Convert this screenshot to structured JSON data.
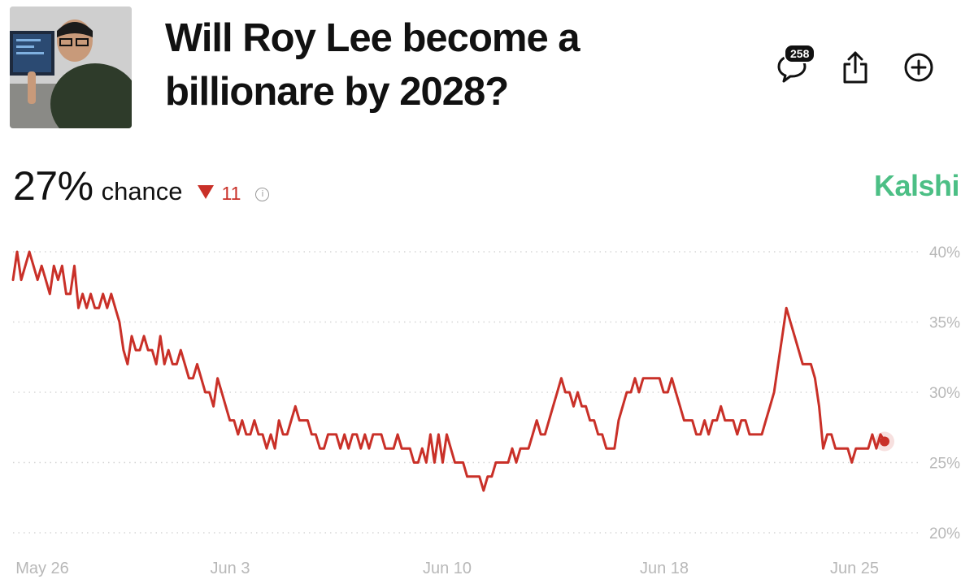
{
  "header": {
    "title": "Will Roy Lee become a billionare by 2028?",
    "avatar_icon": "market-thumbnail",
    "comment_count": "258",
    "icons": [
      "comment-icon",
      "share-icon",
      "plus-circle-icon"
    ]
  },
  "summary": {
    "probability": "27%",
    "label": "chance",
    "delta": "11",
    "delta_direction": "down",
    "delta_color": "#c93028",
    "source": "Kalshi",
    "source_color": "#4cbf85"
  },
  "chart_data": {
    "type": "line",
    "x_tick_labels": [
      "May 26",
      "Jun 3",
      "Jun 10",
      "Jun 18",
      "Jun 25"
    ],
    "y_tick_labels": [
      "40%",
      "35%",
      "30%",
      "25%",
      "20%"
    ],
    "ylim": [
      20,
      40
    ],
    "grid": true,
    "line_color": "#c93028",
    "series": [
      {
        "values": [
          38,
          40,
          38,
          39,
          40,
          39,
          38,
          39,
          38,
          37,
          39,
          38,
          39,
          37,
          37,
          39,
          36,
          37,
          36,
          37,
          36,
          36,
          37,
          36,
          37,
          36,
          35,
          33,
          32,
          34,
          33,
          33,
          34,
          33,
          33,
          32,
          34,
          32,
          33,
          32,
          32,
          33,
          32,
          31,
          31,
          32,
          31,
          30,
          30,
          29,
          31,
          30,
          29,
          28,
          28,
          27,
          28,
          27,
          27,
          28,
          27,
          27,
          26,
          27,
          26,
          28,
          27,
          27,
          28,
          29,
          28,
          28,
          28,
          27,
          27,
          26,
          26,
          27,
          27,
          27,
          26,
          27,
          26,
          27,
          27,
          26,
          27,
          26,
          27,
          27,
          27,
          26,
          26,
          26,
          27,
          26,
          26,
          26,
          25,
          25,
          26,
          25,
          27,
          25,
          27,
          25,
          27,
          26,
          25,
          25,
          25,
          24,
          24,
          24,
          24,
          23,
          24,
          24,
          25,
          25,
          25,
          25,
          26,
          25,
          26,
          26,
          26,
          27,
          28,
          27,
          27,
          28,
          29,
          30,
          31,
          30,
          30,
          29,
          30,
          29,
          29,
          28,
          28,
          27,
          27,
          26,
          26,
          26,
          28,
          29,
          30,
          30,
          31,
          30,
          31,
          31,
          31,
          31,
          31,
          30,
          30,
          31,
          30,
          29,
          28,
          28,
          28,
          27,
          27,
          28,
          27,
          28,
          28,
          29,
          28,
          28,
          28,
          27,
          28,
          28,
          27,
          27,
          27,
          27,
          28,
          29,
          30,
          32,
          34,
          36,
          35,
          34,
          33,
          32,
          32,
          32,
          31,
          29,
          26,
          27,
          27,
          26,
          26,
          26,
          26,
          25,
          26,
          26,
          26,
          26,
          27,
          26,
          27,
          26.5
        ]
      }
    ]
  }
}
